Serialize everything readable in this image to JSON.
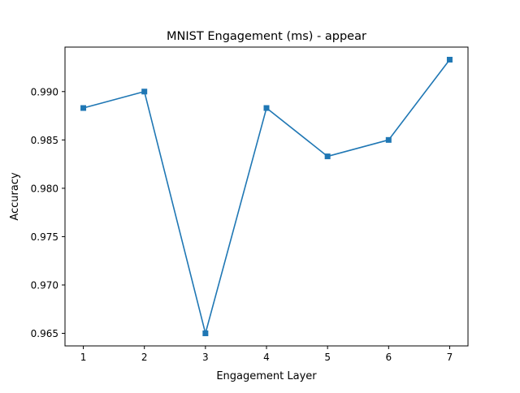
{
  "chart_data": {
    "type": "line",
    "title": "MNIST Engagement (ms) - appear",
    "xlabel": "Engagement Layer",
    "ylabel": "Accuracy",
    "x": [
      1,
      2,
      3,
      4,
      5,
      6,
      7
    ],
    "series": [
      {
        "values": [
          0.9883,
          0.99,
          0.965,
          0.9883,
          0.9833,
          0.985,
          0.9933
        ],
        "color": "#1f77b4",
        "marker": "square"
      }
    ],
    "xlim": [
      0.7,
      7.3
    ],
    "ylim": [
      0.9637,
      0.9946
    ],
    "xticks": [
      "1",
      "2",
      "3",
      "4",
      "5",
      "6",
      "7"
    ],
    "yticks": [
      "0.965",
      "0.970",
      "0.975",
      "0.980",
      "0.985",
      "0.990"
    ],
    "grid": false,
    "legend": "none"
  }
}
